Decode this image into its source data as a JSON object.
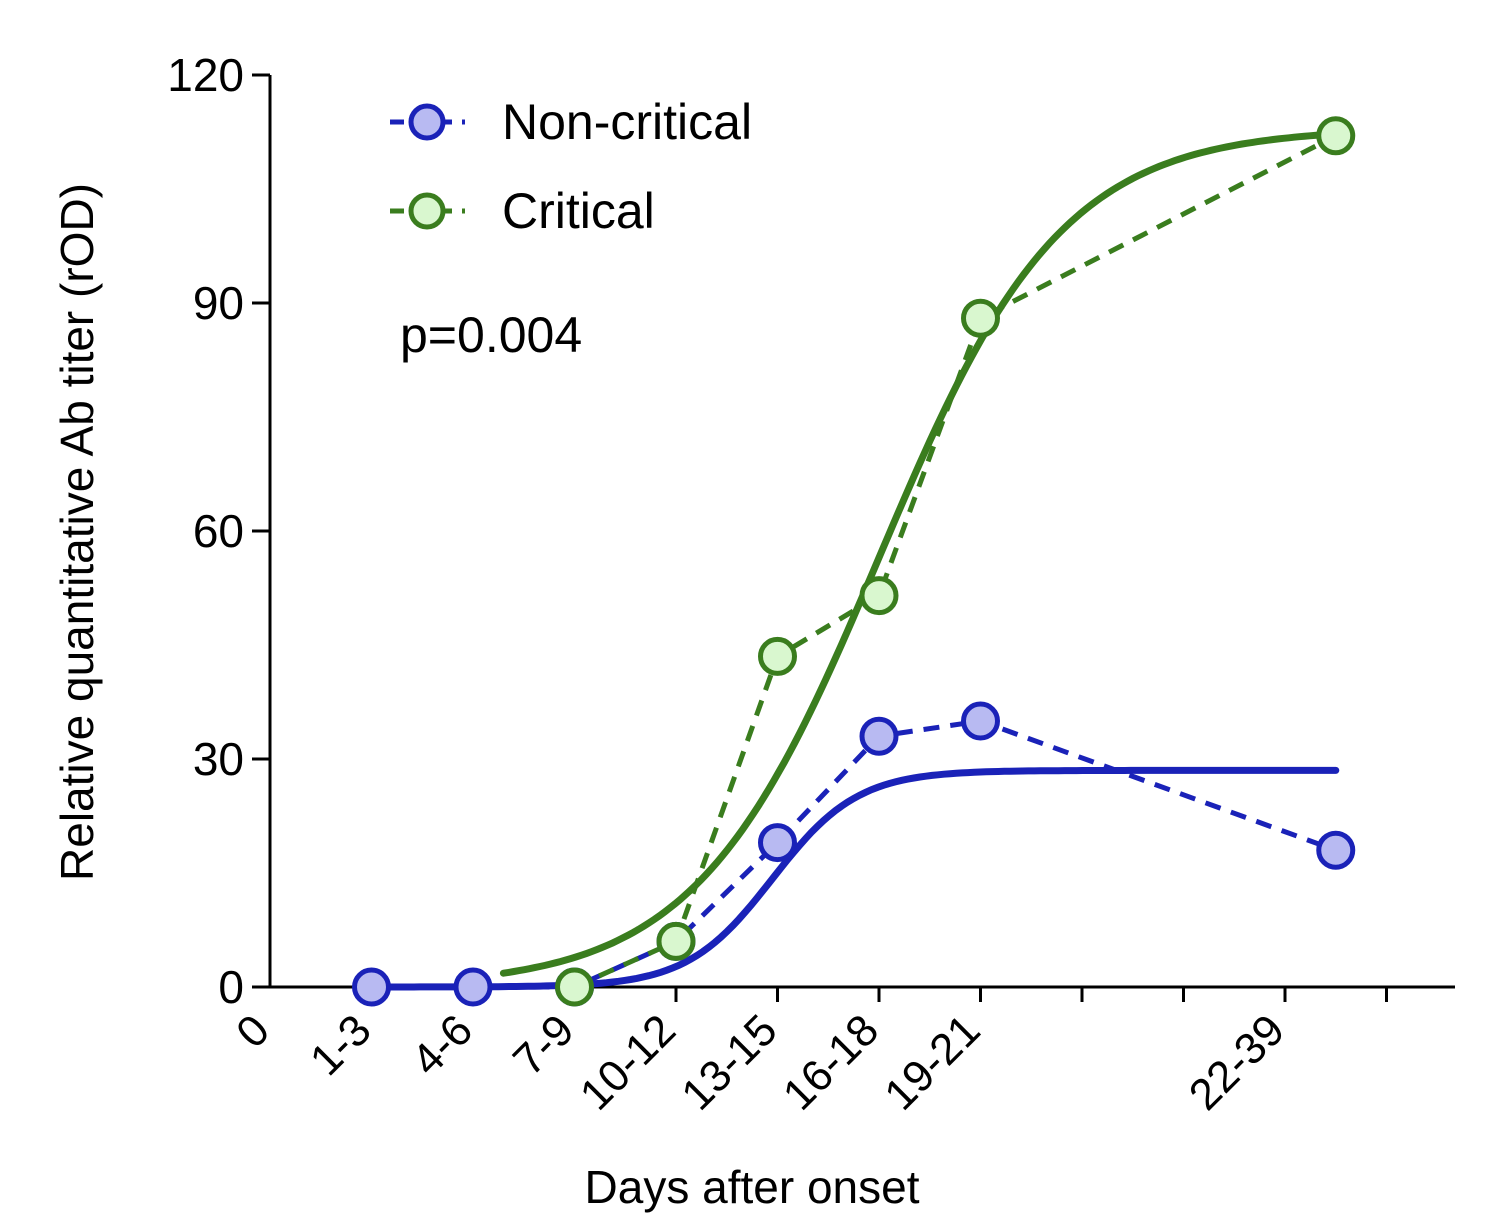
{
  "chart_data": {
    "type": "line",
    "title": "",
    "xlabel": "Days after onset",
    "ylabel": "Relative quantitative Ab titer (rOD)",
    "ylim": [
      0,
      120
    ],
    "y_ticks": [
      "0",
      "30",
      "60",
      "90",
      "120"
    ],
    "x_tick_labels": [
      "0",
      "1-3",
      "4-6",
      "7-9",
      "10-12",
      "13-15",
      "16-18",
      "19-21",
      "22-39"
    ],
    "x_tick_positions": [
      0,
      1,
      2,
      3,
      4,
      5,
      6,
      7,
      10
    ],
    "x_minor_tick_positions": [
      8,
      9,
      11
    ],
    "xlim": [
      0,
      11.7
    ],
    "annotation": "p=0.004",
    "legend_position": "top-left",
    "grid": false,
    "series": [
      {
        "name": "Non-critical",
        "color": "#1a22b8",
        "marker_fill": "#b8baf2",
        "x": [
          1,
          2,
          3,
          4,
          5,
          6,
          7,
          10.5
        ],
        "values": [
          0,
          0,
          0,
          6,
          19,
          33,
          35,
          18
        ],
        "fit": {
          "model": "sigmoid",
          "top": 28.5,
          "mid": 4.95,
          "width": 0.42,
          "x_start": 1,
          "x_end": 10.5
        }
      },
      {
        "name": "Critical",
        "color": "#3a7d1e",
        "marker_fill": "#d9f7cf",
        "x": [
          3,
          4,
          5,
          6,
          7,
          10.5
        ],
        "values": [
          0,
          6,
          43.5,
          51.5,
          88,
          112
        ],
        "fit": {
          "model": "sigmoid",
          "top": 113,
          "mid": 6.0,
          "width": 0.9,
          "x_start": 2.3,
          "x_end": 10.5
        }
      }
    ]
  }
}
